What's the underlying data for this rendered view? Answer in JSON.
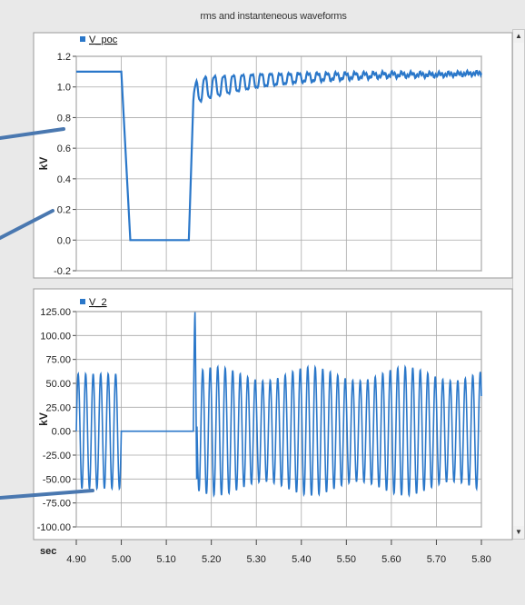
{
  "window": {
    "title": "rms and instanteneous waveforms"
  },
  "colors": {
    "series": "#2a77c9",
    "grid": "#a9a9a9",
    "panel_bg": "#ffffff",
    "callout": "#4a78b0"
  },
  "xaxis": {
    "unit": "sec",
    "ticks": [
      "4.90",
      "5.00",
      "5.10",
      "5.20",
      "5.30",
      "5.40",
      "5.50",
      "5.60",
      "5.70",
      "5.80"
    ]
  },
  "chart_data": [
    {
      "type": "line",
      "legend": "V_poc",
      "ylabel": "kV",
      "xlim": [
        4.9,
        5.8
      ],
      "ylim": [
        -0.2,
        1.2
      ],
      "yticks": [
        "1.2",
        "1.0",
        "0.8",
        "0.6",
        "0.4",
        "0.2",
        "0.0",
        "-0.2"
      ],
      "series": [
        {
          "name": "V_poc",
          "x": [
            4.9,
            5.0,
            5.02,
            5.15,
            5.16,
            5.17,
            5.2,
            5.25,
            5.3,
            5.4,
            5.5,
            5.6,
            5.7,
            5.8
          ],
          "y": [
            1.1,
            1.1,
            0.0,
            0.0,
            0.9,
            0.98,
            1.0,
            1.02,
            1.04,
            1.06,
            1.07,
            1.08,
            1.08,
            1.09
          ]
        }
      ]
    },
    {
      "type": "line",
      "legend": "V_2",
      "ylabel": "kV",
      "xlim": [
        4.9,
        5.8
      ],
      "ylim": [
        -100,
        125
      ],
      "yticks": [
        "125.00",
        "100.00",
        "75.00",
        "50.00",
        "25.00",
        "0.00",
        "-25.00",
        "-50.00",
        "-75.00",
        "-100.00"
      ],
      "series": [
        {
          "name": "V_2",
          "segments": [
            {
              "x_start": 4.9,
              "x_end": 5.0,
              "amplitude": 60,
              "frequency_hz": 60
            },
            {
              "x_start": 5.0,
              "x_end": 5.16,
              "constant": 0
            },
            {
              "x_start": 5.16,
              "x_end": 5.8,
              "amplitude": 60,
              "frequency_hz": 60,
              "spike_peak": 125,
              "spike_trough": -75
            }
          ]
        }
      ]
    }
  ]
}
